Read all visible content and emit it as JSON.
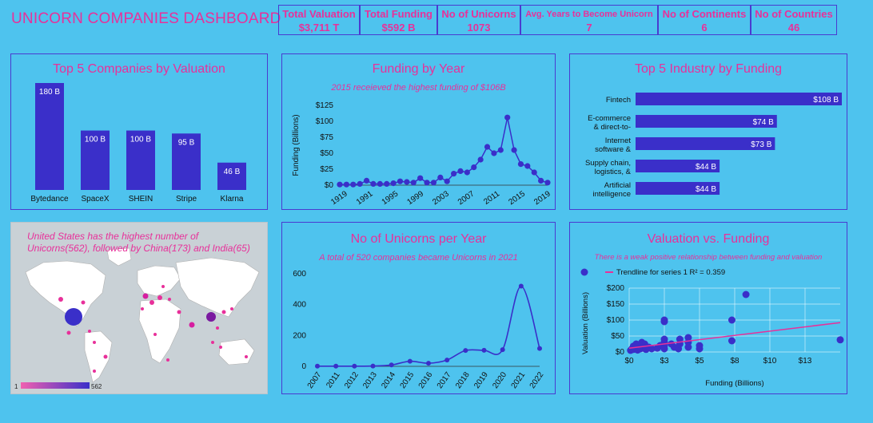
{
  "dashboard": {
    "title": "UNICORN COMPANIES DASHBOARD"
  },
  "kpis": [
    {
      "label": "Total Valuation",
      "value": "$3,711 T"
    },
    {
      "label": "Total Funding",
      "value": "$592 B"
    },
    {
      "label": "No of Unicorns",
      "value": "1073"
    },
    {
      "label": "Avg. Years to Become Unicorn",
      "value": "7"
    },
    {
      "label": "No of Continents",
      "value": "6"
    },
    {
      "label": "No of Countries",
      "value": "46"
    }
  ],
  "colors": {
    "bar": "#3a2fc9",
    "accent": "#e8309a",
    "panel_bg": "#4ec3ee"
  },
  "map": {
    "caption": "United States has the highest number of Unicorns(562), followed by China(173) and India(65)",
    "legend_min": "1",
    "legend_max": "562"
  },
  "chart_data": [
    {
      "type": "bar",
      "title": "Top 5 Companies by Valuation",
      "categories": [
        "Bytedance",
        "SpaceX",
        "SHEIN",
        "Stripe",
        "Klarna"
      ],
      "values": [
        180,
        100,
        100,
        95,
        46
      ],
      "data_labels": [
        "180 B",
        "100 B",
        "100 B",
        "95 B",
        "46 B"
      ]
    },
    {
      "type": "line",
      "title": "Funding by Year",
      "subtitle": "2015 receieved the highest funding of $106B",
      "ylabel": "Funding (Billions)",
      "ylim": [
        0,
        125
      ],
      "yticks": [
        "$0",
        "$25",
        "$50",
        "$75",
        "$100",
        "$125"
      ],
      "xticks": [
        "1919",
        "1991",
        "1995",
        "1999",
        "2003",
        "2007",
        "2011",
        "2015",
        "2019"
      ],
      "values": [
        1,
        1,
        1,
        2,
        7,
        2,
        2,
        2,
        3,
        6,
        5,
        4,
        11,
        4,
        4,
        12,
        6,
        18,
        22,
        20,
        28,
        40,
        60,
        50,
        55,
        106,
        55,
        33,
        30,
        20,
        7,
        4
      ]
    },
    {
      "type": "bar",
      "orientation": "horizontal",
      "title": "Top 5 Industry by Funding",
      "categories": [
        "Fintech",
        "E-commerce & direct-to-",
        "Internet software &",
        "Supply chain, logistics, &",
        "Artificial intelligence"
      ],
      "values": [
        108,
        74,
        73,
        44,
        44
      ],
      "data_labels": [
        "$108 B",
        "$74 B",
        "$73 B",
        "$44 B",
        "$44 B"
      ]
    },
    {
      "type": "line",
      "title": "No of Unicorns per Year",
      "subtitle": "A total of 520 companies became Unicorns in 2021",
      "ylim": [
        0,
        600
      ],
      "yticks": [
        "0",
        "200",
        "400",
        "600"
      ],
      "categories": [
        "2007",
        "2011",
        "2012",
        "2013",
        "2014",
        "2015",
        "2016",
        "2017",
        "2018",
        "2019",
        "2020",
        "2021",
        "2022"
      ],
      "values": [
        1,
        1,
        1,
        2,
        9,
        33,
        20,
        41,
        103,
        104,
        108,
        520,
        116
      ]
    },
    {
      "type": "scatter",
      "title": "Valuation vs. Funding",
      "subtitle": "There is a weak positive relationship between funding and valuation",
      "legend": [
        "Trendline for series 1 R² = 0.359"
      ],
      "xlabel": "Funding (Billions)",
      "ylabel": "Valuation (Billions)",
      "xlim": [
        0,
        15
      ],
      "ylim": [
        0,
        200
      ],
      "xticks": [
        "$0",
        "$3",
        "$5",
        "$8",
        "$10",
        "$13"
      ],
      "yticks": [
        "$0",
        "$50",
        "$100",
        "$150",
        "$200"
      ],
      "points": [
        [
          0.1,
          5
        ],
        [
          0.2,
          10
        ],
        [
          0.3,
          8
        ],
        [
          0.4,
          12
        ],
        [
          0.5,
          15
        ],
        [
          0.6,
          6
        ],
        [
          0.7,
          20
        ],
        [
          0.8,
          10
        ],
        [
          0.9,
          30
        ],
        [
          1.0,
          12
        ],
        [
          1.1,
          25
        ],
        [
          1.2,
          8
        ],
        [
          0.3,
          18
        ],
        [
          0.5,
          25
        ],
        [
          0.7,
          14
        ],
        [
          1.4,
          15
        ],
        [
          1.6,
          10
        ],
        [
          2.0,
          12
        ],
        [
          2.2,
          20
        ],
        [
          2.5,
          95
        ],
        [
          2.5,
          100
        ],
        [
          2.5,
          30
        ],
        [
          2.5,
          40
        ],
        [
          2.5,
          20
        ],
        [
          2.5,
          10
        ],
        [
          3.0,
          25
        ],
        [
          3.2,
          15
        ],
        [
          3.5,
          10
        ],
        [
          3.6,
          40
        ],
        [
          3.6,
          25
        ],
        [
          4.2,
          45
        ],
        [
          4.2,
          30
        ],
        [
          4.2,
          15
        ],
        [
          5.0,
          20
        ],
        [
          5.0,
          10
        ],
        [
          7.3,
          100
        ],
        [
          7.3,
          35
        ],
        [
          8.3,
          180
        ],
        [
          15.0,
          38
        ]
      ],
      "trendline": [
        [
          0,
          12
        ],
        [
          15,
          92
        ]
      ]
    }
  ]
}
